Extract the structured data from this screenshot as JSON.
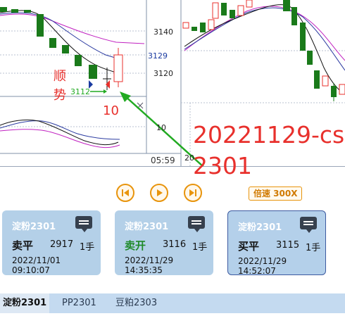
{
  "chart": {
    "left_axis_labels": [
      "3140",
      "3129",
      "3120",
      "10"
    ],
    "right_axis_top": "3140",
    "time_label": "05:59",
    "lower_label": "20",
    "signal_text_1": "顺",
    "signal_text_2": "势",
    "signal_price": "3112",
    "signal_count": "10",
    "overlay_title_line1": "20221129-cs",
    "overlay_title_line2": "2301",
    "close_icon": "close-icon"
  },
  "colors": {
    "up_candle": "#e8302c",
    "down_candle": "#1a7a1a",
    "ma_black": "#111111",
    "ma_blue": "#2a3aa0",
    "ma_magenta": "#c020c0",
    "arrow_green": "#22aa22",
    "accent_orange": "#e8940c"
  },
  "controls": {
    "prev_icon": "skip-back-icon",
    "play_icon": "play-icon",
    "next_icon": "skip-forward-icon",
    "speed_label": "倍速 300X"
  },
  "cards": [
    {
      "title": "淀粉2301",
      "action": "卖平",
      "price": "2917",
      "lots": "1手",
      "time": "2022/11/01 09:10:07"
    },
    {
      "title": "淀粉2301",
      "action": "卖开",
      "price": "3116",
      "lots": "1手",
      "time": "2022/11/29 14:35:35"
    },
    {
      "title": "淀粉2301",
      "action": "买平",
      "price": "3115",
      "lots": "1手",
      "time": "2022/11/29 14:52:07"
    }
  ],
  "tabs": [
    {
      "label": "淀粉2301"
    },
    {
      "label": "PP2301"
    },
    {
      "label": "豆粕2303"
    }
  ]
}
